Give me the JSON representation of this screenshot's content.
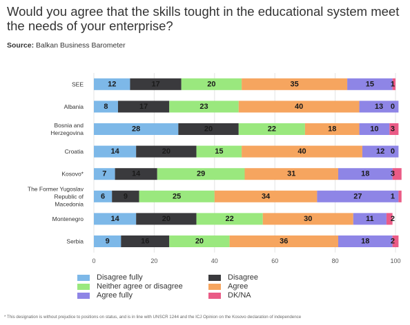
{
  "title": "Would you agree that the skills tought in the educational system meet the needs of your enterprise?",
  "source": {
    "label": "Source:",
    "text": " Balkan Business Barometer"
  },
  "footnote": "* This designation is without prejudice to positions on status, and is in line with UNSCR 1244 and the ICJ Opinion on the Kosovo declaration of independence",
  "chart_data": {
    "type": "bar",
    "orientation": "horizontal",
    "stacked": true,
    "categories": [
      [
        "SEE"
      ],
      [
        "Albania"
      ],
      [
        "Bosnia and",
        "Herzegovina"
      ],
      [
        "Croatia"
      ],
      [
        "Kosovo*"
      ],
      [
        "The Former Yugoslav",
        "Republic of",
        "Macedonia"
      ],
      [
        "Montenegro"
      ],
      [
        "Serbia"
      ]
    ],
    "series": [
      {
        "name": "Disagree fully",
        "color": "#7db8e8",
        "values": [
          12,
          8,
          28,
          14,
          7,
          6,
          14,
          9
        ]
      },
      {
        "name": "Disagree",
        "color": "#3a3a3d",
        "values": [
          17,
          17,
          20,
          20,
          14,
          9,
          20,
          16
        ]
      },
      {
        "name": "Neither agree or disagree",
        "color": "#9ae87e",
        "values": [
          20,
          23,
          22,
          15,
          29,
          25,
          22,
          20
        ]
      },
      {
        "name": "Agree",
        "color": "#f6a55f",
        "values": [
          35,
          40,
          18,
          40,
          31,
          34,
          30,
          36
        ]
      },
      {
        "name": "Agree fully",
        "color": "#8e85e6",
        "values": [
          15,
          13,
          10,
          12,
          18,
          27,
          11,
          18
        ]
      },
      {
        "name": "DK/NA",
        "color": "#ea5b86",
        "values": [
          1,
          0,
          3,
          0,
          3,
          1,
          2,
          2
        ]
      }
    ],
    "xlim": [
      0,
      100
    ],
    "xticks": [
      0,
      20,
      40,
      60,
      80,
      100
    ],
    "grid": true,
    "legend_position": "bottom"
  }
}
